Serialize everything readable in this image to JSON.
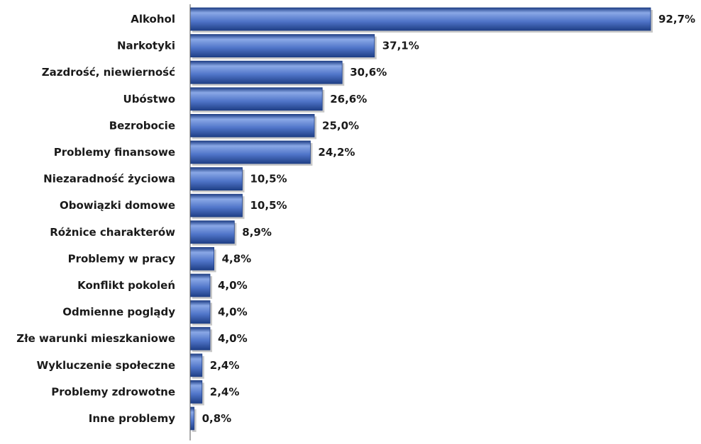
{
  "chart_data": {
    "type": "bar",
    "orientation": "horizontal",
    "title": "",
    "xlabel": "",
    "ylabel": "",
    "xlim": [
      0,
      100
    ],
    "grid": false,
    "legend": "none",
    "bar_color": "#4f74c8",
    "bar_dark_color": "#1f3f86",
    "bar_light_color": "#8aa8e6",
    "axis_color": "#555555",
    "categories": [
      "Alkohol",
      "Narkotyki",
      "Zazdrość, niewierność",
      "Ubóstwo",
      "Bezrobocie",
      "Problemy finansowe",
      "Niezaradność życiowa",
      "Obowiązki domowe",
      "Różnice charakterów",
      "Problemy w pracy",
      "Konflikt pokoleń",
      "Odmienne poglądy",
      "Złe warunki mieszkaniowe",
      "Wykluczenie społeczne",
      "Problemy zdrowotne",
      "Inne problemy"
    ],
    "values": [
      92.7,
      37.1,
      30.6,
      26.6,
      25.0,
      24.2,
      10.5,
      10.5,
      8.9,
      4.8,
      4.0,
      4.0,
      4.0,
      2.4,
      2.4,
      0.8
    ],
    "value_labels": [
      "92,7%",
      "37,1%",
      "30,6%",
      "26,6%",
      "25,0%",
      "24,2%",
      "10,5%",
      "10,5%",
      "8,9%",
      "4,8%",
      "4,0%",
      "4,0%",
      "4,0%",
      "2,4%",
      "2,4%",
      "0,8%"
    ]
  }
}
